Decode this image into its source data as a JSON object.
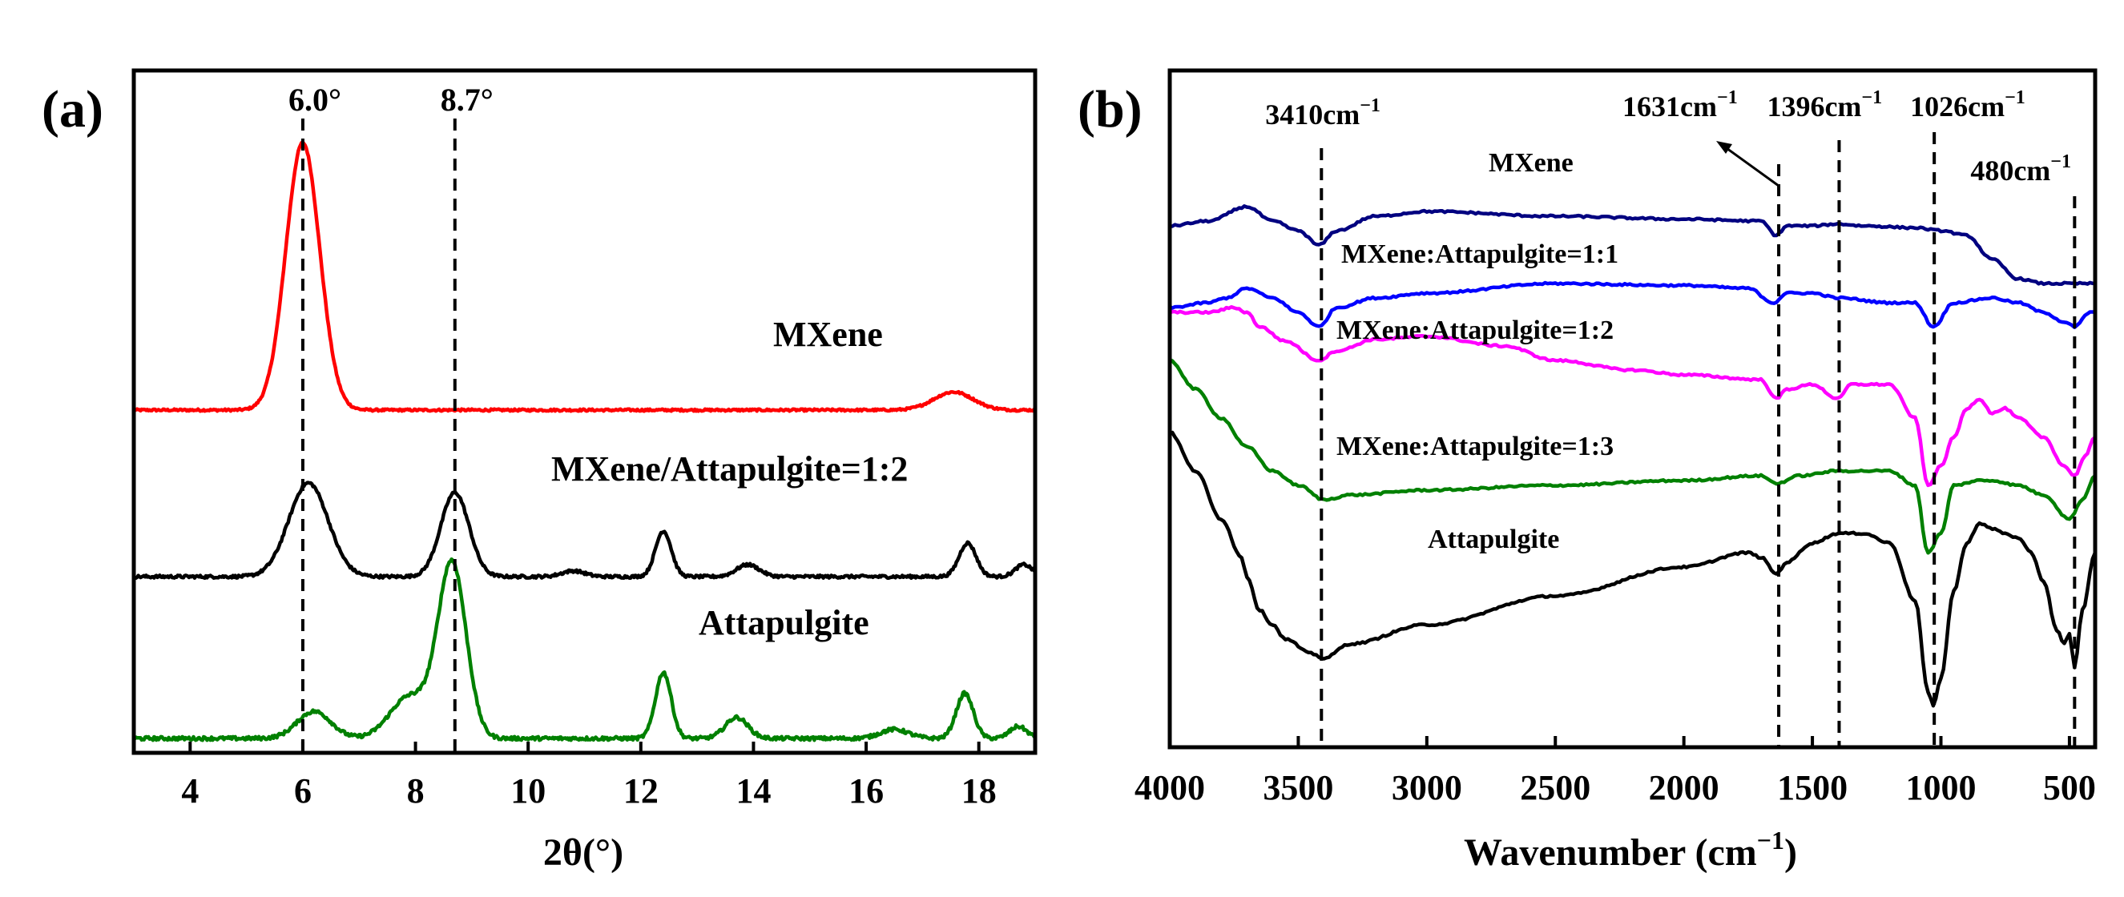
{
  "chart_data": [
    {
      "panel": "(a)",
      "type": "line",
      "xlabel": "2θ(°)",
      "ylabel": "",
      "xlim": [
        3,
        19
      ],
      "xticks": [
        4,
        6,
        8,
        10,
        12,
        14,
        16,
        18
      ],
      "y_offset_stacked": true,
      "reference_lines": [
        {
          "x": 6.0,
          "label": "6.0°"
        },
        {
          "x": 8.7,
          "label": "8.7°"
        }
      ],
      "series": [
        {
          "name": "MXene",
          "color": "#ff0000",
          "baseline": 0,
          "noise": 0.012,
          "peaks": [
            {
              "center": 6.0,
              "height": 4.45,
              "width": 0.3
            },
            {
              "center": 17.55,
              "height": 0.3,
              "width": 0.35
            }
          ]
        },
        {
          "name": "MXene/Attapulgite=1:2",
          "color": "#000000",
          "baseline": 0,
          "noise": 0.02,
          "peaks": [
            {
              "center": 6.1,
              "height": 1.95,
              "width": 0.35
            },
            {
              "center": 8.7,
              "height": 1.75,
              "width": 0.25
            },
            {
              "center": 10.8,
              "height": 0.12,
              "width": 0.2
            },
            {
              "center": 12.4,
              "height": 0.95,
              "width": 0.14
            },
            {
              "center": 13.9,
              "height": 0.25,
              "width": 0.2
            },
            {
              "center": 17.8,
              "height": 0.7,
              "width": 0.15
            },
            {
              "center": 18.8,
              "height": 0.25,
              "width": 0.15
            }
          ]
        },
        {
          "name": "Attapulgite",
          "color": "#008000",
          "baseline": 0,
          "noise": 0.02,
          "peaks": [
            {
              "center": 6.2,
              "height": 0.45,
              "width": 0.3
            },
            {
              "center": 7.9,
              "height": 0.7,
              "width": 0.35
            },
            {
              "center": 8.65,
              "height": 2.9,
              "width": 0.25
            },
            {
              "center": 12.4,
              "height": 1.1,
              "width": 0.14
            },
            {
              "center": 13.7,
              "height": 0.35,
              "width": 0.2
            },
            {
              "center": 16.5,
              "height": 0.15,
              "width": 0.25
            },
            {
              "center": 17.75,
              "height": 0.75,
              "width": 0.15
            },
            {
              "center": 18.7,
              "height": 0.2,
              "width": 0.15
            }
          ]
        }
      ]
    },
    {
      "panel": "(b)",
      "type": "line",
      "xlabel": "Wavenumber (cm",
      "xlabel_sup": "−1",
      "xlabel_close": ")",
      "ylabel": "",
      "xlim": [
        4000,
        400
      ],
      "xticks": [
        4000,
        3500,
        3000,
        2500,
        2000,
        1500,
        1000,
        500
      ],
      "y_offset_stacked": true,
      "reference_lines": [
        {
          "x": 3410,
          "label": "3410cm",
          "sup": "−1"
        },
        {
          "x": 1631,
          "label": "1631cm",
          "sup": "−1"
        },
        {
          "x": 1396,
          "label": "1396cm",
          "sup": "−1"
        },
        {
          "x": 1026,
          "label": "1026cm",
          "sup": "−1"
        },
        {
          "x": 480,
          "label": "480cm",
          "sup": "−1"
        }
      ],
      "series": [
        {
          "name": "MXene",
          "color": "#000080",
          "points": [
            [
              4000,
              2.9
            ],
            [
              3850,
              2.95
            ],
            [
              3700,
              3.1
            ],
            [
              3600,
              2.95
            ],
            [
              3500,
              2.85
            ],
            [
              3420,
              2.7
            ],
            [
              3350,
              2.85
            ],
            [
              3200,
              3.0
            ],
            [
              3000,
              3.05
            ],
            [
              2500,
              3.0
            ],
            [
              2000,
              2.97
            ],
            [
              1700,
              2.95
            ],
            [
              1640,
              2.8
            ],
            [
              1600,
              2.9
            ],
            [
              1500,
              2.9
            ],
            [
              1400,
              2.92
            ],
            [
              1300,
              2.9
            ],
            [
              1100,
              2.88
            ],
            [
              1000,
              2.85
            ],
            [
              900,
              2.8
            ],
            [
              800,
              2.55
            ],
            [
              700,
              2.35
            ],
            [
              600,
              2.3
            ],
            [
              500,
              2.3
            ],
            [
              400,
              2.3
            ]
          ]
        },
        {
          "name": "MXene:Attapulgite=1:1",
          "color": "#0000ff",
          "points": [
            [
              4000,
              2.05
            ],
            [
              3850,
              2.1
            ],
            [
              3780,
              2.15
            ],
            [
              3700,
              2.25
            ],
            [
              3600,
              2.15
            ],
            [
              3500,
              2.0
            ],
            [
              3420,
              1.85
            ],
            [
              3350,
              2.05
            ],
            [
              3200,
              2.15
            ],
            [
              3000,
              2.2
            ],
            [
              2500,
              2.3
            ],
            [
              2000,
              2.28
            ],
            [
              1750,
              2.25
            ],
            [
              1650,
              2.1
            ],
            [
              1600,
              2.2
            ],
            [
              1500,
              2.2
            ],
            [
              1400,
              2.15
            ],
            [
              1200,
              2.1
            ],
            [
              1100,
              2.1
            ],
            [
              1030,
              1.85
            ],
            [
              950,
              2.1
            ],
            [
              800,
              2.15
            ],
            [
              700,
              2.1
            ],
            [
              600,
              2.0
            ],
            [
              520,
              1.9
            ],
            [
              480,
              1.85
            ],
            [
              420,
              2.0
            ],
            [
              400,
              2.0
            ]
          ]
        },
        {
          "name": "MXene:Attapulgite=1:2",
          "color": "#ff00ff",
          "points": [
            [
              4000,
              2.0
            ],
            [
              3850,
              2.0
            ],
            [
              3750,
              2.05
            ],
            [
              3700,
              2.0
            ],
            [
              3650,
              1.85
            ],
            [
              3550,
              1.7
            ],
            [
              3420,
              1.5
            ],
            [
              3350,
              1.6
            ],
            [
              3200,
              1.72
            ],
            [
              3000,
              1.75
            ],
            [
              2700,
              1.65
            ],
            [
              2500,
              1.5
            ],
            [
              2200,
              1.4
            ],
            [
              2000,
              1.35
            ],
            [
              1700,
              1.3
            ],
            [
              1640,
              1.1
            ],
            [
              1600,
              1.2
            ],
            [
              1500,
              1.25
            ],
            [
              1400,
              1.1
            ],
            [
              1350,
              1.25
            ],
            [
              1200,
              1.25
            ],
            [
              1100,
              0.9
            ],
            [
              1050,
              0.2
            ],
            [
              1000,
              0.4
            ],
            [
              950,
              0.7
            ],
            [
              900,
              1.0
            ],
            [
              850,
              1.1
            ],
            [
              800,
              0.95
            ],
            [
              750,
              1.0
            ],
            [
              700,
              0.9
            ],
            [
              600,
              0.7
            ],
            [
              520,
              0.4
            ],
            [
              480,
              0.3
            ],
            [
              440,
              0.5
            ],
            [
              400,
              0.7
            ]
          ]
        },
        {
          "name": "MXene:Attapulgite=1:3",
          "color": "#008000",
          "points": [
            [
              4000,
              1.5
            ],
            [
              3900,
              1.2
            ],
            [
              3800,
              0.9
            ],
            [
              3700,
              0.6
            ],
            [
              3600,
              0.35
            ],
            [
              3500,
              0.2
            ],
            [
              3400,
              0.05
            ],
            [
              3300,
              0.1
            ],
            [
              3000,
              0.15
            ],
            [
              2500,
              0.2
            ],
            [
              2000,
              0.25
            ],
            [
              1700,
              0.3
            ],
            [
              1640,
              0.22
            ],
            [
              1550,
              0.3
            ],
            [
              1400,
              0.35
            ],
            [
              1200,
              0.35
            ],
            [
              1100,
              0.2
            ],
            [
              1050,
              -0.5
            ],
            [
              1000,
              -0.3
            ],
            [
              950,
              0.2
            ],
            [
              850,
              0.25
            ],
            [
              800,
              0.25
            ],
            [
              700,
              0.2
            ],
            [
              600,
              0.1
            ],
            [
              500,
              -0.15
            ],
            [
              450,
              0.05
            ],
            [
              400,
              0.3
            ]
          ]
        },
        {
          "name": "Attapulgite",
          "color": "#000000",
          "points": [
            [
              4000,
              0.75
            ],
            [
              3900,
              0.35
            ],
            [
              3800,
              -0.15
            ],
            [
              3720,
              -0.55
            ],
            [
              3700,
              -0.75
            ],
            [
              3650,
              -1.1
            ],
            [
              3600,
              -1.25
            ],
            [
              3550,
              -1.4
            ],
            [
              3450,
              -1.55
            ],
            [
              3400,
              -1.6
            ],
            [
              3300,
              -1.45
            ],
            [
              3000,
              -1.25
            ],
            [
              2500,
              -0.95
            ],
            [
              2000,
              -0.65
            ],
            [
              1750,
              -0.5
            ],
            [
              1700,
              -0.55
            ],
            [
              1640,
              -0.72
            ],
            [
              1600,
              -0.6
            ],
            [
              1500,
              -0.4
            ],
            [
              1400,
              -0.3
            ],
            [
              1300,
              -0.3
            ],
            [
              1200,
              -0.4
            ],
            [
              1100,
              -1.0
            ],
            [
              1050,
              -1.95
            ],
            [
              1030,
              -2.1
            ],
            [
              1000,
              -1.8
            ],
            [
              950,
              -0.9
            ],
            [
              900,
              -0.4
            ],
            [
              850,
              -0.2
            ],
            [
              800,
              -0.25
            ],
            [
              750,
              -0.3
            ],
            [
              700,
              -0.35
            ],
            [
              650,
              -0.5
            ],
            [
              600,
              -0.8
            ],
            [
              550,
              -1.3
            ],
            [
              520,
              -1.45
            ],
            [
              500,
              -1.35
            ],
            [
              480,
              -1.7
            ],
            [
              450,
              -1.1
            ],
            [
              400,
              -0.5
            ]
          ]
        }
      ]
    }
  ],
  "panel_a": {
    "label": "(a)",
    "peak_labels": [
      "6.0°",
      "8.7°"
    ],
    "series_labels": [
      "MXene",
      "MXene/Attapulgite=1:2",
      "Attapulgite"
    ],
    "xlabel": "2θ(°)"
  },
  "panel_b": {
    "label": "(b)",
    "series_labels": [
      "MXene",
      "MXene:Attapulgite=1:1",
      "MXene:Attapulgite=1:2",
      "MXene:Attapulgite=1:3",
      "Attapulgite"
    ]
  }
}
